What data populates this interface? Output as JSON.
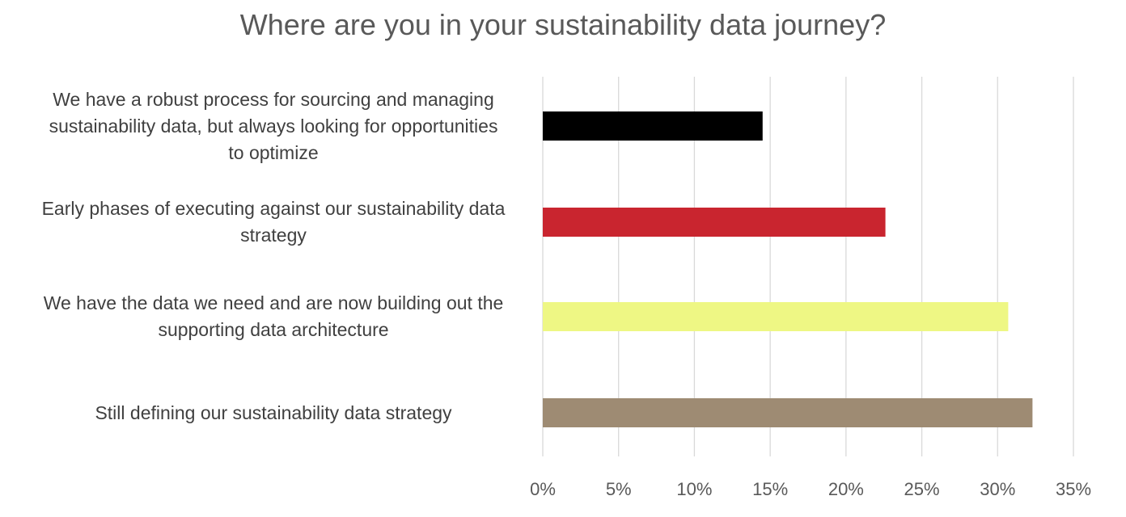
{
  "chart_data": {
    "type": "bar",
    "orientation": "horizontal",
    "title": "Where are you in your sustainability data journey?",
    "xlabel": "",
    "ylabel": "",
    "categories": [
      "We have a robust process for sourcing and managing sustainability data, but always looking for opportunities to optimize",
      "Early phases of executing against our sustainability data strategy",
      "We have the data we need and are now building out the supporting data architecture",
      "Still defining our sustainability data strategy"
    ],
    "values": [
      14.5,
      22.6,
      30.7,
      32.3
    ],
    "colors": [
      "#000000",
      "#c9252f",
      "#eef784",
      "#9e8b73"
    ],
    "xlim": [
      0,
      35
    ],
    "x_ticks": [
      "0%",
      "5%",
      "10%",
      "15%",
      "20%",
      "25%",
      "30%",
      "35%"
    ],
    "grid": true,
    "legend": "none"
  }
}
